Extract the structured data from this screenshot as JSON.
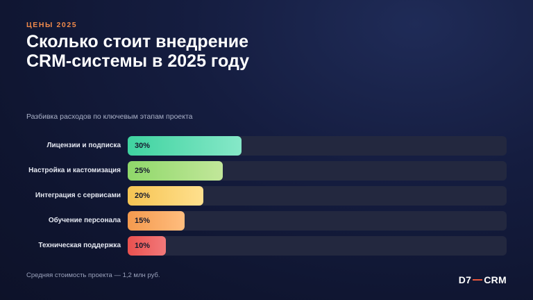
{
  "header": {
    "eyebrow": "ЦЕНЫ 2025",
    "title": "Сколько стоит внедрение CRM-системы в 2025 году",
    "subtitle": "Разбивка расходов по ключевым этапам проекта"
  },
  "chart_data": {
    "type": "bar",
    "orientation": "horizontal",
    "categories": [
      "Лицензии и подписка",
      "Настройка и кастомизация",
      "Интеграция с сервисами",
      "Обучение персонала",
      "Техническая поддержка"
    ],
    "values": [
      30,
      25,
      20,
      15,
      10
    ],
    "value_labels": [
      "30%",
      "25%",
      "20%",
      "15%",
      "10%"
    ],
    "unit": "%",
    "xlim": [
      0,
      100
    ],
    "grid": false,
    "legend": "none",
    "bar_colors": [
      [
        "#3fd3a0",
        "#86e8c8"
      ],
      [
        "#8fd86a",
        "#c2e79a"
      ],
      [
        "#f6c453",
        "#ffe08e"
      ],
      [
        "#f49a4e",
        "#ffbd7e"
      ],
      [
        "#e9514f",
        "#f2797a"
      ]
    ]
  },
  "footer": {
    "note": "Средняя стоимость проекта — 1,2 млн руб.",
    "logo_left": "D7",
    "logo_right": "CRM"
  },
  "colors": {
    "accent": "#f08a4b",
    "track": "#23283f",
    "background": "#111733"
  }
}
